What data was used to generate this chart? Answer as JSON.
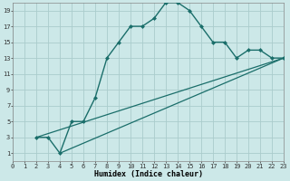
{
  "xlabel": "Humidex (Indice chaleur)",
  "bg_color": "#cce8e8",
  "grid_color": "#aacccc",
  "line_color": "#1a6e6a",
  "curve_x": [
    2,
    3,
    4,
    5,
    6,
    7,
    8,
    9,
    10,
    11,
    12,
    13,
    14,
    15,
    16,
    17,
    18,
    19,
    20,
    21,
    22,
    23
  ],
  "curve_y": [
    3,
    3,
    1,
    5,
    5,
    8,
    13,
    15,
    17,
    17,
    18,
    20,
    20,
    19,
    17,
    15,
    15,
    13,
    14,
    14,
    13,
    13
  ],
  "line2_x": [
    2,
    23
  ],
  "line2_y": [
    3,
    13
  ],
  "line3_x": [
    4,
    23
  ],
  "line3_y": [
    1,
    13
  ],
  "xlim": [
    0,
    23
  ],
  "ylim": [
    0,
    20
  ],
  "xticks": [
    0,
    1,
    2,
    3,
    4,
    5,
    6,
    7,
    8,
    9,
    10,
    11,
    12,
    13,
    14,
    15,
    16,
    17,
    18,
    19,
    20,
    21,
    22,
    23
  ],
  "yticks": [
    1,
    3,
    5,
    7,
    9,
    11,
    13,
    15,
    17,
    19
  ]
}
